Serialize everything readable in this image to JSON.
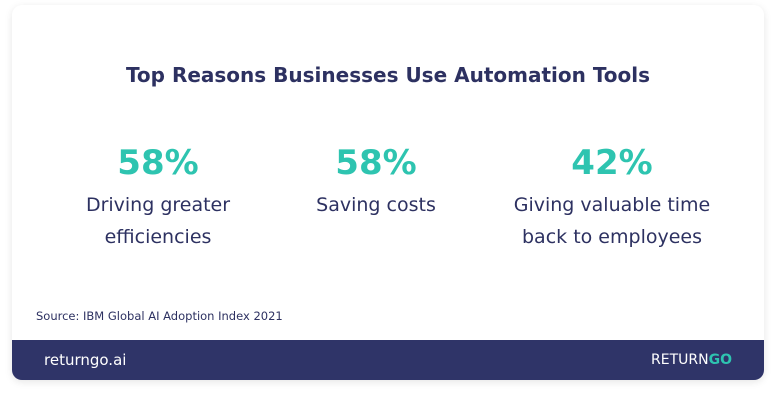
{
  "title": "Top Reasons Businesses Use Automation Tools",
  "stats": [
    {
      "value": "58%",
      "label_lines": [
        "Driving greater",
        "efficiencies"
      ]
    },
    {
      "value": "58%",
      "label_lines": [
        "Saving costs"
      ]
    },
    {
      "value": "42%",
      "label_lines": [
        "Giving valuable time",
        "back to employees"
      ]
    }
  ],
  "source": "Source: IBM Global AI Adoption Index 2021",
  "footer": {
    "site": "returngo.ai",
    "logo": {
      "word": "RETURN",
      "accent": "GO"
    }
  }
}
